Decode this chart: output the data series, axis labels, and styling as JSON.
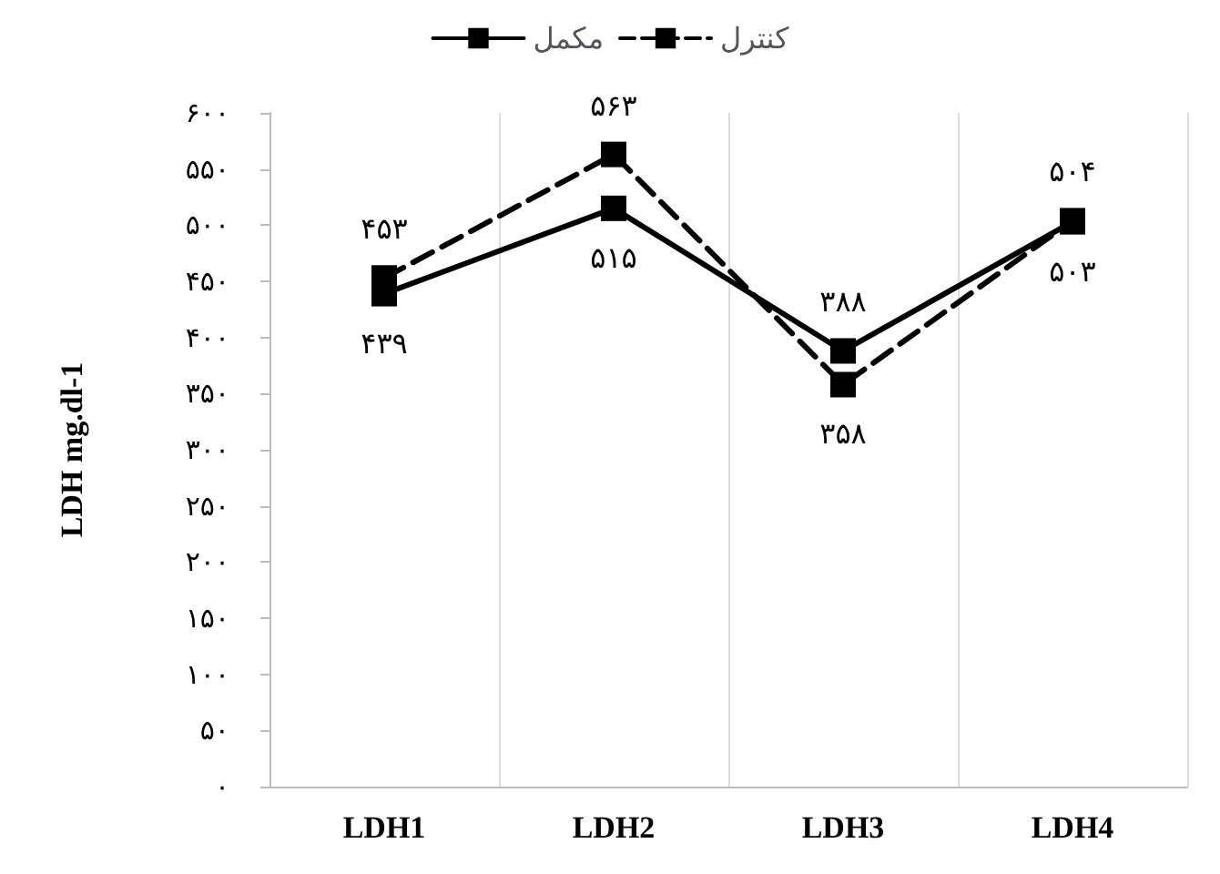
{
  "chart_data": {
    "type": "line",
    "ylabel": "LDH mg.dl-1",
    "categories": [
      "LDH1",
      "LDH2",
      "LDH3",
      "LDH4"
    ],
    "series": [
      {
        "name": "مکمل",
        "color": "#000000",
        "line_style": "solid",
        "values": [
          439,
          515,
          388,
          503
        ],
        "value_labels": [
          "۴۳۹",
          "۵۱۵",
          "۳۸۸",
          "۵۰۳"
        ]
      },
      {
        "name": "کنترل",
        "color": "#000000",
        "line_style": "dashed",
        "values": [
          453,
          563,
          358,
          504
        ],
        "value_labels": [
          "۴۵۳",
          "۵۶۳",
          "۳۵۸",
          "۵۰۴"
        ]
      }
    ],
    "ylim": [
      0,
      600
    ],
    "yticks": [
      {
        "value": 0,
        "label": "۰"
      },
      {
        "value": 50,
        "label": "۵۰"
      },
      {
        "value": 100,
        "label": "۱۰۰"
      },
      {
        "value": 150,
        "label": "۱۵۰"
      },
      {
        "value": 200,
        "label": "۲۰۰"
      },
      {
        "value": 250,
        "label": "۲۵۰"
      },
      {
        "value": 300,
        "label": "۳۰۰"
      },
      {
        "value": 350,
        "label": "۳۵۰"
      },
      {
        "value": 400,
        "label": "۴۰۰"
      },
      {
        "value": 450,
        "label": "۴۵۰"
      },
      {
        "value": 500,
        "label": "۵۰۰"
      },
      {
        "value": 550,
        "label": "۵۵۰"
      },
      {
        "value": 600,
        "label": "۶۰۰"
      }
    ],
    "grid": "x",
    "legend": "top",
    "marker": "square"
  }
}
